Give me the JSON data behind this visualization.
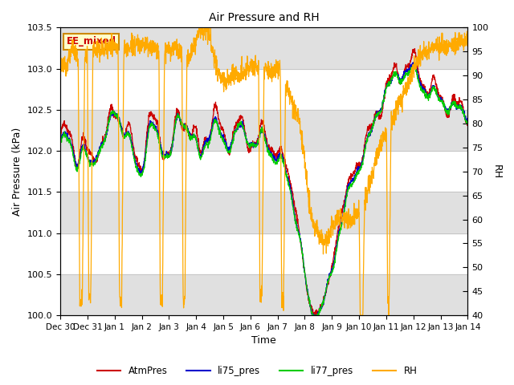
{
  "title": "Air Pressure and RH",
  "xlabel": "Time",
  "ylabel_left": "Air Pressure (kPa)",
  "ylabel_right": "RH",
  "annotation": "EE_mixed",
  "ylim_left": [
    100.0,
    103.5
  ],
  "ylim_right": [
    40,
    100
  ],
  "yticks_left": [
    100.0,
    100.5,
    101.0,
    101.5,
    102.0,
    102.5,
    103.0,
    103.5
  ],
  "yticks_right": [
    40,
    45,
    50,
    55,
    60,
    65,
    70,
    75,
    80,
    85,
    90,
    95,
    100
  ],
  "xtick_labels": [
    "Dec 30",
    "Dec 31",
    "Jan 1",
    "Jan 2",
    "Jan 3",
    "Jan 4",
    "Jan 5",
    "Jan 6",
    "Jan 7",
    "Jan 8",
    "Jan 9",
    "Jan 10",
    "Jan 11",
    "Jan 12",
    "Jan 13",
    "Jan 14"
  ],
  "colors": {
    "AtmPres": "#cc0000",
    "li75_pres": "#0000cc",
    "li77_pres": "#00cc00",
    "RH": "#ffaa00",
    "annotation_bg": "#ffffcc",
    "annotation_border": "#cc8800",
    "annotation_text": "#cc0000",
    "grid_band": "#e0e0e0"
  },
  "legend_labels": [
    "AtmPres",
    "li75_pres",
    "li77_pres",
    "RH"
  ],
  "background_color": "#ffffff"
}
